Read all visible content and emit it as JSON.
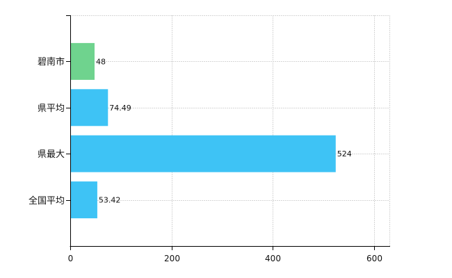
{
  "chart_data": {
    "type": "bar",
    "orientation": "horizontal",
    "categories": [
      "碧南市",
      "県平均",
      "県最大",
      "全国平均"
    ],
    "values": [
      48,
      74.49,
      524,
      53.42
    ],
    "value_labels": [
      "48",
      "74.49",
      "524",
      "53.42"
    ],
    "bar_colors": [
      "#6fd38e",
      "#3ec3f5",
      "#3ec3f5",
      "#3ec3f5"
    ],
    "xlim": [
      0,
      630
    ],
    "xticks": [
      0,
      200,
      400,
      600
    ],
    "xtick_labels": [
      "0",
      "200",
      "400",
      "600"
    ],
    "grid": true,
    "title": "",
    "xlabel": "",
    "ylabel": ""
  }
}
